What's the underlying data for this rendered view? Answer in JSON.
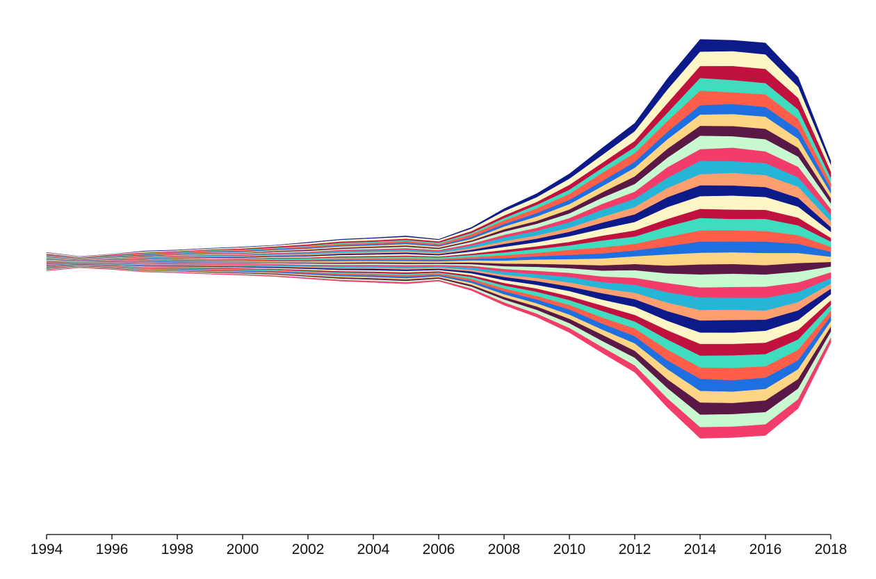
{
  "chart_data": {
    "type": "area",
    "subtype": "streamgraph",
    "title": "",
    "xlabel": "",
    "ylabel": "",
    "x": [
      1994,
      1995,
      1996,
      1997,
      1998,
      1999,
      2000,
      2001,
      2002,
      2003,
      2004,
      2005,
      2006,
      2007,
      2008,
      2009,
      2010,
      2011,
      2012,
      2013,
      2014,
      2015,
      2016,
      2017,
      2018
    ],
    "xlim": [
      1994,
      2018
    ],
    "x_tick_labels": [
      "1994",
      "1996",
      "1998",
      "2000",
      "2002",
      "2004",
      "2006",
      "2008",
      "2010",
      "2012",
      "2014",
      "2016",
      "2018"
    ],
    "y_axis_shown": false,
    "grid": false,
    "legend": "none",
    "baseline": "wiggle",
    "palette": [
      "#0d1a8a",
      "#1e6fe0",
      "#26b5d6",
      "#40dcc0",
      "#c8f8d0",
      "#fff6c8",
      "#fdd585",
      "#ff9e6e",
      "#ff5e4a",
      "#f23d6a",
      "#c0113f",
      "#5a1846"
    ],
    "series": [
      {
        "values": [
          0.6,
          0.3,
          0.3,
          0.8,
          0.7,
          0.6,
          0.7,
          0.5,
          0.9,
          0.9,
          1.0,
          1.2,
          0.9,
          1.6,
          3.0,
          4.2,
          5.6,
          8.0,
          9.0,
          12.4,
          13.8,
          12.3,
          12.9,
          10.8,
          4.9
        ]
      },
      {
        "values": [
          1.2,
          0.8,
          0.6,
          1.2,
          1.0,
          1.1,
          1.3,
          1.2,
          1.7,
          1.9,
          2.3,
          2.1,
          1.7,
          2.8,
          4.7,
          5.3,
          6.8,
          8.6,
          10.6,
          14.9,
          15.8,
          16.2,
          15.9,
          12.2,
          7.2
        ]
      },
      {
        "values": [
          0.9,
          0.3,
          0.8,
          0.8,
          0.8,
          0.8,
          1.0,
          1.3,
          1.3,
          1.4,
          1.3,
          1.4,
          1.4,
          2.0,
          2.8,
          3.2,
          5.3,
          5.6,
          6.9,
          10.5,
          13.1,
          15.5,
          15.6,
          12.8,
          7.2
        ]
      },
      {
        "values": [
          0.4,
          0.5,
          0.5,
          0.5,
          0.5,
          0.7,
          0.7,
          0.7,
          0.9,
          1.2,
          1.1,
          1.1,
          1.3,
          1.6,
          2.6,
          3.8,
          4.6,
          5.3,
          6.5,
          9.1,
          13.8,
          13.4,
          12.3,
          10.3,
          5.7
        ]
      },
      {
        "values": [
          0.7,
          0.4,
          0.4,
          0.9,
          1.0,
          1.1,
          1.3,
          0.9,
          1.4,
          1.5,
          1.6,
          1.8,
          1.6,
          2.9,
          4.0,
          5.2,
          6.5,
          9.1,
          9.6,
          11.8,
          16.0,
          12.8,
          13.8,
          11.4,
          5.9
        ]
      },
      {
        "values": [
          0.6,
          0.3,
          0.6,
          0.7,
          0.7,
          0.7,
          0.9,
          1.0,
          1.1,
          1.2,
          1.3,
          1.5,
          1.2,
          2.0,
          2.7,
          3.8,
          4.7,
          5.6,
          6.6,
          8.2,
          10.3,
          11.1,
          10.7,
          10.2,
          5.1
        ]
      },
      {
        "values": [
          0.6,
          0.4,
          0.4,
          0.5,
          0.6,
          0.8,
          1.1,
          1.1,
          1.2,
          1.6,
          1.4,
          1.7,
          1.6,
          1.8,
          3.1,
          4.8,
          5.9,
          6.7,
          9.4,
          10.4,
          12.4,
          13.1,
          13.3,
          10.0,
          5.4
        ]
      },
      {
        "values": [
          0.5,
          0.3,
          0.4,
          0.7,
          0.5,
          0.8,
          0.7,
          0.9,
          1.2,
          1.1,
          1.2,
          1.3,
          1.2,
          1.5,
          2.6,
          3.2,
          4.3,
          5.9,
          8.4,
          9.8,
          10.8,
          11.2,
          11.5,
          9.8,
          5.6
        ]
      },
      {
        "values": [
          0.6,
          0.4,
          0.6,
          0.6,
          0.7,
          0.9,
          0.7,
          1.1,
          1.2,
          1.1,
          1.6,
          1.6,
          1.3,
          2.1,
          3.4,
          4.3,
          5.1,
          6.8,
          8.4,
          10.4,
          14.8,
          12.5,
          13.3,
          11.0,
          6.1
        ]
      },
      {
        "values": [
          0.5,
          0.3,
          0.5,
          0.8,
          0.8,
          0.8,
          0.9,
          0.9,
          1.1,
          1.2,
          1.4,
          1.6,
          1.3,
          2.0,
          2.9,
          3.5,
          4.5,
          6.5,
          7.8,
          11.6,
          12.9,
          14.8,
          12.9,
          11.7,
          6.5
        ]
      },
      {
        "values": [
          0.6,
          0.3,
          0.5,
          0.7,
          0.9,
          1.0,
          0.9,
          1.3,
          1.4,
          1.8,
          1.6,
          1.7,
          1.6,
          2.7,
          4.1,
          5.0,
          6.2,
          7.8,
          9.1,
          11.3,
          14.6,
          12.9,
          13.2,
          10.3,
          7.0
        ]
      },
      {
        "values": [
          0.6,
          0.4,
          0.6,
          0.8,
          0.8,
          0.8,
          1.0,
          1.1,
          1.3,
          1.4,
          1.5,
          1.6,
          1.5,
          1.9,
          2.9,
          3.5,
          4.4,
          6.2,
          7.9,
          10.0,
          12.1,
          13.8,
          13.0,
          12.1,
          6.3
        ]
      },
      {
        "values": [
          0.5,
          0.4,
          0.4,
          0.6,
          0.6,
          0.8,
          0.9,
          0.9,
          1.0,
          1.3,
          1.4,
          1.4,
          1.2,
          1.9,
          3.3,
          3.9,
          4.8,
          6.8,
          8.5,
          10.9,
          11.9,
          11.1,
          10.9,
          9.7,
          5.2
        ]
      },
      {
        "values": [
          0.8,
          0.4,
          0.5,
          0.7,
          0.9,
          1.0,
          0.9,
          1.1,
          1.3,
          1.5,
          1.7,
          1.8,
          1.5,
          2.4,
          3.4,
          4.4,
          6.3,
          7.5,
          9.2,
          13.0,
          14.0,
          15.3,
          14.1,
          12.0,
          6.6
        ]
      },
      {
        "values": [
          0.4,
          0.3,
          0.5,
          0.5,
          0.6,
          0.5,
          0.7,
          0.8,
          0.8,
          1.0,
          1.1,
          1.1,
          0.9,
          1.4,
          2.7,
          3.0,
          3.8,
          5.3,
          6.7,
          8.2,
          10.0,
          10.3,
          9.9,
          8.5,
          4.1
        ]
      },
      {
        "values": [
          0.6,
          0.5,
          0.6,
          0.6,
          0.6,
          0.9,
          1.0,
          1.2,
          1.4,
          1.5,
          1.6,
          2.0,
          1.7,
          2.2,
          3.1,
          4.3,
          4.9,
          7.5,
          8.1,
          11.6,
          13.6,
          12.5,
          13.3,
          10.8,
          5.7
        ]
      },
      {
        "values": [
          0.6,
          0.3,
          0.4,
          0.6,
          0.7,
          0.8,
          0.9,
          0.9,
          1.0,
          1.3,
          1.4,
          1.5,
          1.2,
          2.0,
          3.2,
          3.7,
          5.6,
          6.6,
          7.1,
          10.1,
          12.2,
          12.2,
          11.7,
          9.4,
          5.5
        ]
      },
      {
        "values": [
          0.4,
          0.3,
          0.4,
          0.7,
          0.8,
          0.8,
          0.7,
          1.0,
          1.1,
          1.3,
          1.2,
          1.4,
          1.4,
          1.7,
          2.7,
          3.5,
          4.6,
          5.6,
          6.5,
          9.0,
          12.3,
          11.9,
          12.5,
          10.1,
          5.3
        ]
      },
      {
        "values": [
          0.6,
          0.4,
          0.5,
          0.8,
          0.8,
          1.0,
          1.1,
          1.1,
          1.2,
          1.6,
          1.5,
          1.7,
          1.4,
          2.3,
          3.3,
          4.8,
          5.9,
          7.5,
          8.5,
          12.3,
          12.8,
          12.8,
          13.3,
          11.0,
          5.8
        ]
      },
      {
        "values": [
          0.8,
          0.3,
          0.5,
          0.6,
          0.8,
          0.8,
          0.9,
          0.9,
          1.0,
          1.3,
          1.4,
          1.4,
          1.3,
          1.8,
          2.9,
          3.3,
          4.1,
          5.8,
          6.7,
          8.5,
          11.0,
          10.6,
          10.2,
          9.5,
          5.0
        ]
      },
      {
        "values": [
          0.6,
          0.4,
          0.5,
          0.6,
          0.7,
          0.7,
          0.8,
          1.0,
          1.3,
          1.4,
          1.5,
          1.5,
          1.3,
          1.9,
          3.0,
          4.3,
          5.0,
          6.4,
          8.4,
          10.6,
          14.2,
          14.6,
          13.4,
          11.8,
          6.3
        ]
      },
      {
        "values": [
          0.5,
          0.4,
          0.4,
          0.5,
          0.7,
          0.8,
          0.9,
          1.0,
          1.1,
          1.2,
          1.2,
          1.5,
          1.2,
          1.8,
          2.8,
          3.7,
          4.6,
          6.2,
          7.6,
          10.1,
          11.1,
          11.8,
          12.2,
          10.4,
          6.6
        ]
      },
      {
        "values": [
          0.7,
          0.3,
          0.6,
          0.7,
          0.8,
          1.0,
          0.9,
          1.2,
          1.2,
          1.6,
          1.6,
          1.8,
          1.5,
          2.4,
          3.5,
          4.2,
          6.0,
          6.9,
          8.8,
          11.4,
          13.7,
          13.2,
          13.9,
          11.1,
          6.0
        ]
      },
      {
        "values": [
          0.4,
          0.3,
          0.5,
          0.6,
          0.6,
          0.7,
          0.8,
          0.9,
          1.1,
          1.2,
          1.3,
          1.4,
          1.4,
          1.8,
          2.4,
          3.4,
          4.4,
          5.3,
          7.0,
          9.3,
          11.5,
          11.2,
          10.1,
          9.1,
          5.4
        ]
      },
      {
        "values": [
          0.5,
          0.4,
          0.4,
          0.7,
          0.8,
          0.9,
          1.0,
          1.1,
          1.2,
          1.4,
          1.7,
          1.5,
          1.4,
          2.1,
          3.5,
          4.1,
          5.0,
          7.1,
          8.3,
          10.6,
          13.2,
          13.9,
          12.1,
          10.6,
          6.0
        ]
      },
      {
        "values": [
          0.6,
          0.4,
          0.6,
          0.8,
          0.8,
          0.8,
          1.0,
          1.1,
          1.3,
          1.4,
          1.5,
          1.7,
          1.4,
          2.2,
          3.1,
          4.1,
          5.6,
          6.4,
          8.9,
          10.4,
          12.4,
          12.3,
          13.1,
          10.8,
          6.7
        ]
      },
      {
        "values": [
          0.6,
          0.3,
          0.5,
          0.5,
          0.7,
          0.9,
          0.9,
          0.9,
          1.2,
          1.3,
          1.4,
          1.5,
          1.3,
          1.9,
          2.8,
          3.5,
          4.3,
          5.9,
          7.3,
          10.1,
          12.9,
          12.6,
          12.5,
          10.4,
          5.1
        ]
      },
      {
        "values": [
          0.5,
          0.4,
          0.5,
          0.7,
          0.8,
          0.8,
          1.0,
          1.0,
          1.1,
          1.3,
          1.4,
          1.4,
          1.2,
          2.1,
          3.2,
          4.6,
          5.3,
          7.2,
          7.6,
          11.1,
          13.0,
          13.7,
          13.4,
          11.4,
          6.2
        ]
      },
      {
        "values": [
          0.7,
          0.4,
          0.5,
          0.7,
          0.7,
          1.0,
          1.0,
          1.1,
          1.2,
          1.5,
          1.6,
          1.7,
          1.5,
          2.3,
          3.1,
          3.8,
          4.9,
          6.6,
          8.4,
          11.9,
          12.4,
          13.6,
          12.4,
          11.5,
          6.1
        ]
      },
      {
        "values": [
          0.5,
          0.3,
          0.4,
          0.6,
          0.8,
          0.8,
          0.8,
          1.1,
          1.3,
          1.3,
          1.4,
          1.7,
          1.4,
          2.0,
          3.3,
          4.2,
          5.7,
          6.6,
          8.0,
          9.6,
          13.3,
          12.4,
          12.4,
          9.8,
          5.5
        ]
      },
      {
        "values": [
          0.6,
          0.4,
          0.6,
          0.8,
          0.8,
          0.9,
          0.9,
          1.0,
          1.3,
          1.4,
          1.5,
          1.5,
          1.3,
          2.2,
          3.0,
          3.5,
          4.6,
          5.6,
          8.1,
          11.1,
          12.7,
          12.5,
          12.6,
          10.8,
          6.0
        ]
      },
      {
        "values": [
          0.5,
          0.3,
          0.5,
          0.6,
          0.6,
          0.8,
          0.9,
          1.0,
          1.0,
          1.3,
          1.4,
          1.4,
          1.3,
          1.9,
          2.7,
          3.7,
          4.8,
          6.9,
          7.6,
          9.6,
          13.3,
          12.2,
          12.8,
          10.4,
          5.7
        ]
      },
      {
        "values": [
          0.6,
          0.4,
          0.5,
          0.7,
          0.8,
          0.9,
          1.0,
          1.2,
          1.2,
          1.4,
          1.6,
          1.6,
          1.4,
          2.2,
          3.1,
          4.1,
          5.2,
          6.6,
          8.4,
          11.2,
          13.6,
          13.7,
          13.4,
          11.7,
          6.3
        ]
      },
      {
        "values": [
          0.4,
          0.3,
          0.4,
          0.6,
          0.7,
          0.7,
          0.8,
          0.9,
          1.1,
          1.2,
          1.3,
          1.4,
          1.2,
          1.9,
          2.9,
          3.6,
          4.9,
          6.2,
          7.4,
          9.8,
          12.1,
          11.8,
          12.0,
          10.0,
          5.4
        ]
      }
    ]
  }
}
